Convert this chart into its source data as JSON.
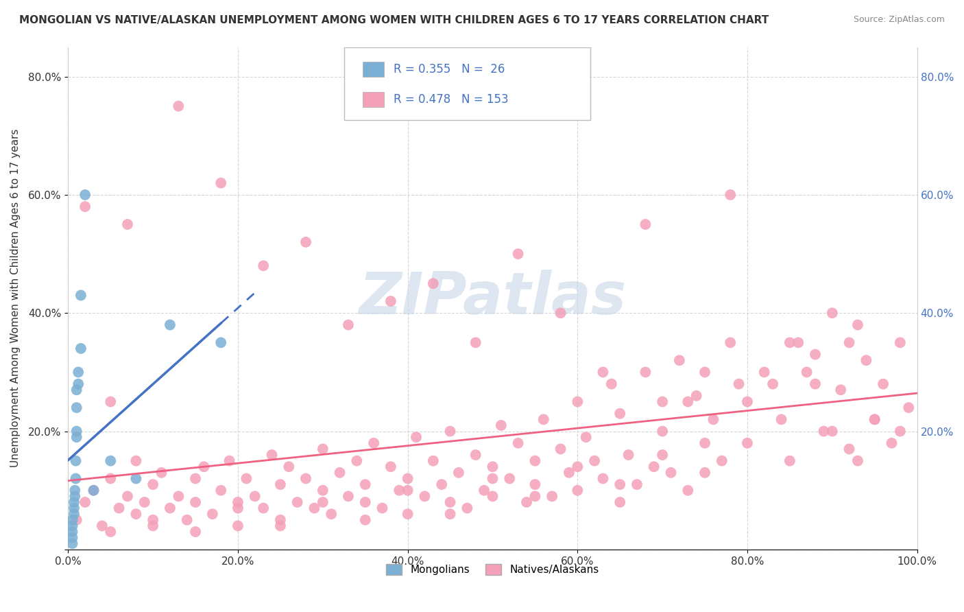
{
  "title": "MONGOLIAN VS NATIVE/ALASKAN UNEMPLOYMENT AMONG WOMEN WITH CHILDREN AGES 6 TO 17 YEARS CORRELATION CHART",
  "source": "Source: ZipAtlas.com",
  "ylabel": "Unemployment Among Women with Children Ages 6 to 17 years",
  "xlim": [
    0,
    1.0
  ],
  "ylim": [
    0,
    0.85
  ],
  "xticks": [
    0.0,
    0.2,
    0.4,
    0.6,
    0.8,
    1.0
  ],
  "xtick_labels": [
    "0.0%",
    "20.0%",
    "40.0%",
    "60.0%",
    "80.0%",
    "100.0%"
  ],
  "yticks": [
    0.0,
    0.2,
    0.4,
    0.6,
    0.8
  ],
  "ytick_labels": [
    "",
    "20.0%",
    "40.0%",
    "60.0%",
    "80.0%"
  ],
  "right_yticks": [
    0.2,
    0.4,
    0.6,
    0.8
  ],
  "right_ytick_labels": [
    "20.0%",
    "40.0%",
    "60.0%",
    "80.0%"
  ],
  "mongolian_R": 0.355,
  "mongolian_N": 26,
  "native_R": 0.478,
  "native_N": 153,
  "mongolian_color": "#7bafd4",
  "native_color": "#f4a0b8",
  "mongolian_line_color": "#4472c4",
  "native_line_color": "#f06080",
  "watermark": "ZIPatlas",
  "watermark_color": "#c8d8e8",
  "background_color": "#ffffff",
  "mongolian_x": [
    0.005,
    0.005,
    0.005,
    0.005,
    0.005,
    0.007,
    0.007,
    0.007,
    0.008,
    0.008,
    0.009,
    0.009,
    0.01,
    0.01,
    0.01,
    0.01,
    0.012,
    0.012,
    0.015,
    0.015,
    0.02,
    0.03,
    0.05,
    0.08,
    0.12,
    0.18
  ],
  "mongolian_y": [
    0.01,
    0.02,
    0.03,
    0.04,
    0.05,
    0.06,
    0.07,
    0.08,
    0.09,
    0.1,
    0.12,
    0.15,
    0.19,
    0.2,
    0.24,
    0.27,
    0.28,
    0.3,
    0.34,
    0.43,
    0.6,
    0.1,
    0.15,
    0.12,
    0.38,
    0.35
  ],
  "native_x": [
    0.01,
    0.02,
    0.03,
    0.04,
    0.05,
    0.05,
    0.06,
    0.07,
    0.08,
    0.08,
    0.09,
    0.1,
    0.1,
    0.11,
    0.12,
    0.13,
    0.14,
    0.15,
    0.15,
    0.16,
    0.17,
    0.18,
    0.19,
    0.2,
    0.2,
    0.21,
    0.22,
    0.23,
    0.24,
    0.25,
    0.25,
    0.26,
    0.27,
    0.28,
    0.29,
    0.3,
    0.3,
    0.31,
    0.32,
    0.33,
    0.34,
    0.35,
    0.35,
    0.36,
    0.37,
    0.38,
    0.39,
    0.4,
    0.4,
    0.41,
    0.42,
    0.43,
    0.44,
    0.45,
    0.45,
    0.46,
    0.47,
    0.48,
    0.49,
    0.5,
    0.5,
    0.51,
    0.52,
    0.53,
    0.54,
    0.55,
    0.55,
    0.56,
    0.57,
    0.58,
    0.59,
    0.6,
    0.6,
    0.61,
    0.62,
    0.63,
    0.64,
    0.65,
    0.65,
    0.66,
    0.67,
    0.68,
    0.69,
    0.7,
    0.7,
    0.71,
    0.72,
    0.73,
    0.74,
    0.75,
    0.75,
    0.76,
    0.77,
    0.78,
    0.79,
    0.8,
    0.82,
    0.84,
    0.86,
    0.88,
    0.9,
    0.92,
    0.05,
    0.1,
    0.15,
    0.2,
    0.25,
    0.3,
    0.35,
    0.4,
    0.45,
    0.5,
    0.55,
    0.6,
    0.65,
    0.7,
    0.75,
    0.8,
    0.85,
    0.9,
    0.92,
    0.95,
    0.02,
    0.07,
    0.13,
    0.18,
    0.23,
    0.28,
    0.33,
    0.38,
    0.43,
    0.48,
    0.53,
    0.58,
    0.63,
    0.68,
    0.73,
    0.78,
    0.83,
    0.88,
    0.93,
    0.98,
    0.94,
    0.96,
    0.98,
    0.99,
    0.97,
    0.95,
    0.93,
    0.91,
    0.89,
    0.87,
    0.85
  ],
  "native_y": [
    0.05,
    0.08,
    0.1,
    0.04,
    0.12,
    0.03,
    0.07,
    0.09,
    0.06,
    0.15,
    0.08,
    0.11,
    0.04,
    0.13,
    0.07,
    0.09,
    0.05,
    0.12,
    0.08,
    0.14,
    0.06,
    0.1,
    0.15,
    0.08,
    0.04,
    0.12,
    0.09,
    0.07,
    0.16,
    0.11,
    0.05,
    0.14,
    0.08,
    0.12,
    0.07,
    0.1,
    0.17,
    0.06,
    0.13,
    0.09,
    0.15,
    0.08,
    0.11,
    0.18,
    0.07,
    0.14,
    0.1,
    0.12,
    0.06,
    0.19,
    0.09,
    0.15,
    0.11,
    0.08,
    0.2,
    0.13,
    0.07,
    0.16,
    0.1,
    0.14,
    0.09,
    0.21,
    0.12,
    0.18,
    0.08,
    0.15,
    0.11,
    0.22,
    0.09,
    0.17,
    0.13,
    0.25,
    0.1,
    0.19,
    0.15,
    0.12,
    0.28,
    0.08,
    0.23,
    0.16,
    0.11,
    0.3,
    0.14,
    0.25,
    0.2,
    0.13,
    0.32,
    0.1,
    0.26,
    0.18,
    0.3,
    0.22,
    0.15,
    0.35,
    0.28,
    0.25,
    0.3,
    0.22,
    0.35,
    0.28,
    0.4,
    0.35,
    0.25,
    0.05,
    0.03,
    0.07,
    0.04,
    0.08,
    0.05,
    0.1,
    0.06,
    0.12,
    0.09,
    0.14,
    0.11,
    0.16,
    0.13,
    0.18,
    0.15,
    0.2,
    0.17,
    0.22,
    0.58,
    0.55,
    0.75,
    0.62,
    0.48,
    0.52,
    0.38,
    0.42,
    0.45,
    0.35,
    0.5,
    0.4,
    0.3,
    0.55,
    0.25,
    0.6,
    0.28,
    0.33,
    0.38,
    0.2,
    0.32,
    0.28,
    0.35,
    0.24,
    0.18,
    0.22,
    0.15,
    0.27,
    0.2,
    0.3,
    0.35
  ]
}
